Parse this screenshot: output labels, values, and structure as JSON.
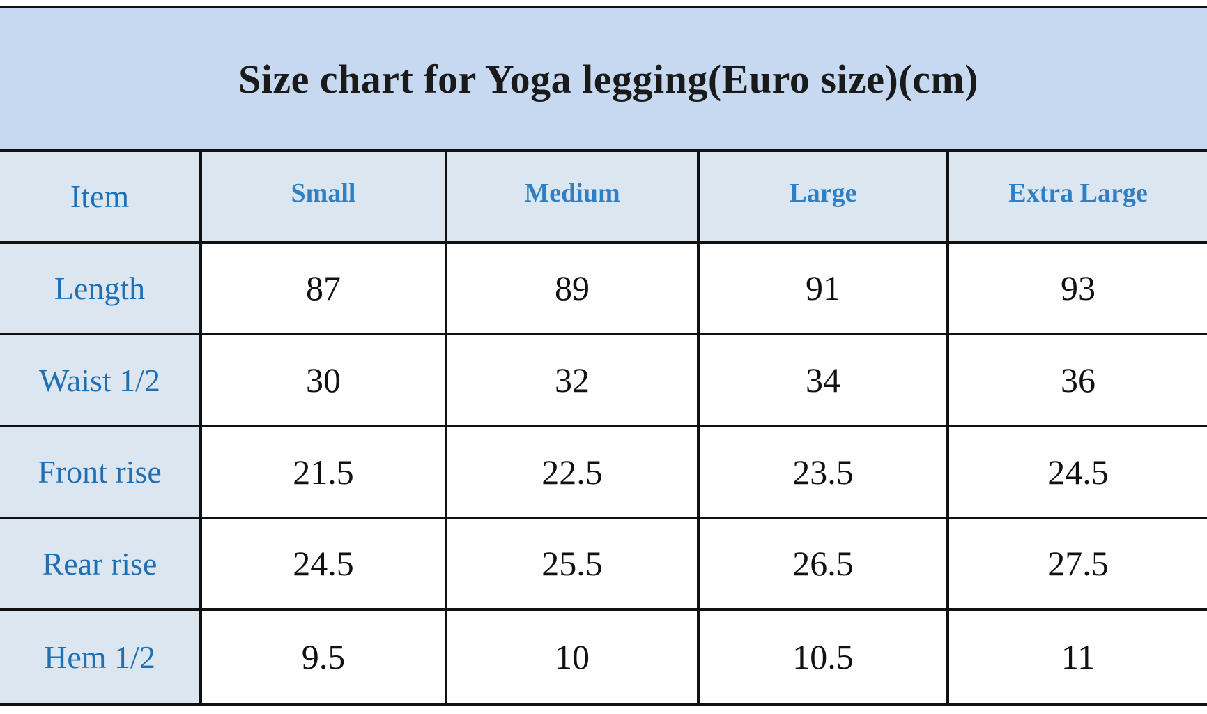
{
  "title": "Size chart for Yoga legging(Euro size)(cm)",
  "colors": {
    "title_background": "#c6d9f0",
    "header_background": "#dce6f1",
    "label_text": "#1f6fb5",
    "value_text": "#111111",
    "border": "#111111"
  },
  "table": {
    "corner_label": "Item",
    "columns": [
      "Small",
      "Medium",
      "Large",
      "Extra Large"
    ],
    "rows": [
      {
        "label": "Length",
        "values": [
          "87",
          "89",
          "91",
          "93"
        ]
      },
      {
        "label": "Waist 1/2",
        "values": [
          "30",
          "32",
          "34",
          "36"
        ]
      },
      {
        "label": "Front rise",
        "values": [
          "21.5",
          "22.5",
          "23.5",
          "24.5"
        ]
      },
      {
        "label": "Rear rise",
        "values": [
          "24.5",
          "25.5",
          "26.5",
          "27.5"
        ]
      },
      {
        "label": "Hem 1/2",
        "values": [
          "9.5",
          "10",
          "10.5",
          "11"
        ]
      }
    ]
  }
}
